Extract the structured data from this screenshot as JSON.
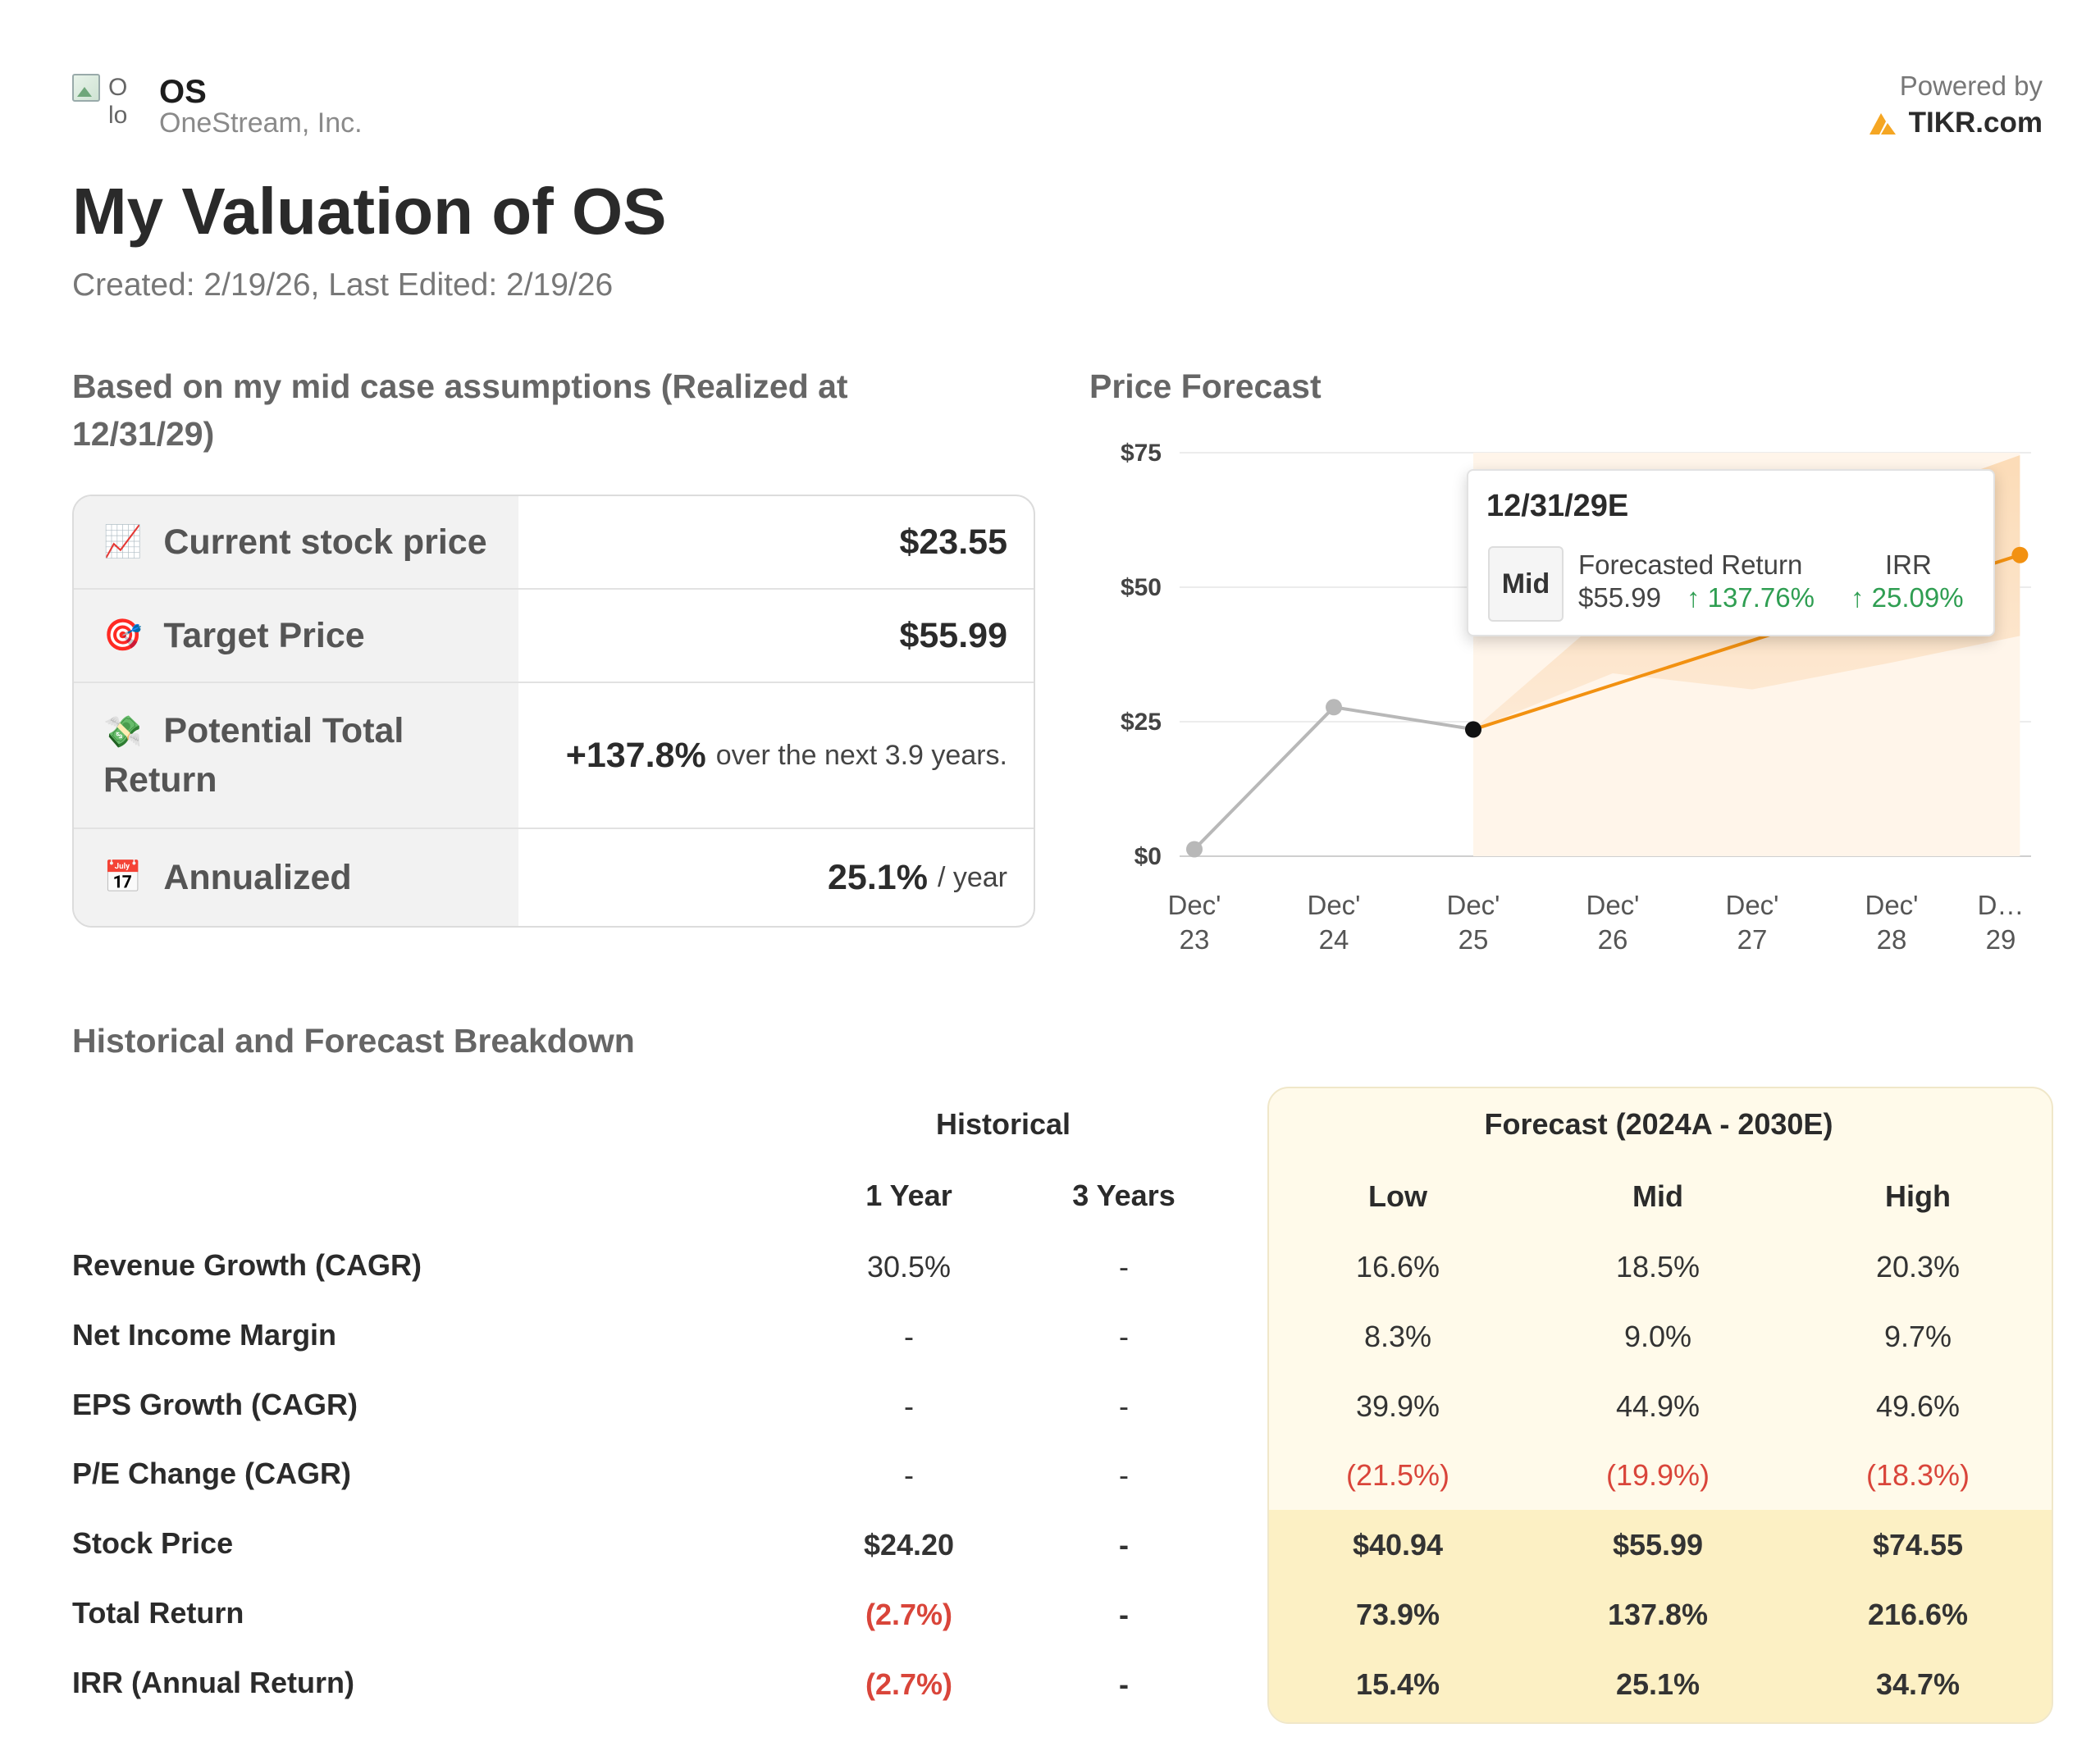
{
  "header": {
    "logo_alt": "OS logo",
    "ticker": "OS",
    "company": "OneStream, Inc.",
    "powered_by": "Powered by",
    "brand": "TIKR.com"
  },
  "page": {
    "title": "My Valuation of OS",
    "subtitle": "Created: 2/19/26, Last Edited: 2/19/26"
  },
  "summary": {
    "heading": "Based on my mid case assumptions (Realized at 12/31/29)",
    "rows": [
      {
        "icon": "chart-increasing-icon",
        "emoji": "📈",
        "label": "Current stock price",
        "value": "$23.55"
      },
      {
        "icon": "target-icon",
        "emoji": "🎯",
        "label": "Target Price",
        "value": "$55.99"
      },
      {
        "icon": "money-with-wings-icon",
        "emoji": "💸",
        "label": "Potential Total Return",
        "value": "+137.8%",
        "suffix": "over the next 3.9 years."
      },
      {
        "icon": "calendar-icon",
        "emoji": "📅",
        "label": "Annualized",
        "value": "25.1%",
        "suffix": "/ year"
      }
    ]
  },
  "chart_data": {
    "type": "line",
    "title": "Price Forecast",
    "categories": [
      "Dec' 23",
      "Dec' 24",
      "Dec' 25",
      "Dec' 26",
      "Dec' 27",
      "Dec' 28",
      "D… 29"
    ],
    "ylim": [
      0,
      75
    ],
    "yticks": [
      "$0",
      "$25",
      "$50",
      "$75"
    ],
    "historical": {
      "name": "Historical",
      "x": [
        0,
        1,
        2
      ],
      "values": [
        1.3,
        27.7,
        23.6
      ],
      "color": "#b8b8b8"
    },
    "forecast_mid": {
      "name": "Mid",
      "x": [
        2,
        5.92
      ],
      "values": [
        23.55,
        55.99
      ],
      "color": "#f29111"
    },
    "forecast_range": {
      "x": [
        2,
        3,
        4,
        5,
        5.92
      ],
      "low": [
        23.55,
        34,
        31,
        36,
        40.94
      ],
      "high": [
        23.55,
        46,
        56,
        66,
        74.55
      ]
    },
    "tooltip": {
      "date": "12/31/29E",
      "case": "Mid",
      "return_label": "Forecasted Return",
      "irr_label": "IRR",
      "price": "$55.99",
      "return_pct": "↑ 137.76%",
      "irr_pct": "↑ 25.09%"
    }
  },
  "breakdown": {
    "heading": "Historical and Forecast Breakdown",
    "historical_title": "Historical",
    "forecast_title": "Forecast (2024A - 2030E)",
    "columns": [
      "1 Year",
      "3 Years",
      "Low",
      "Mid",
      "High"
    ],
    "rows": [
      {
        "label": "Revenue Growth (CAGR)",
        "values": [
          "30.5%",
          "-",
          "16.6%",
          "18.5%",
          "20.3%"
        ]
      },
      {
        "label": "Net Income Margin",
        "values": [
          "-",
          "-",
          "8.3%",
          "9.0%",
          "9.7%"
        ]
      },
      {
        "label": "EPS Growth (CAGR)",
        "values": [
          "-",
          "-",
          "39.9%",
          "44.9%",
          "49.6%"
        ]
      },
      {
        "label": "P/E Change (CAGR)",
        "values": [
          "-",
          "-",
          "(21.5%)",
          "(19.9%)",
          "(18.3%)"
        ]
      },
      {
        "label": "Stock Price",
        "values": [
          "$24.20",
          "-",
          "$40.94",
          "$55.99",
          "$74.55"
        ]
      },
      {
        "label": "Total Return",
        "values": [
          "(2.7%)",
          "-",
          "73.9%",
          "137.8%",
          "216.6%"
        ]
      },
      {
        "label": "IRR (Annual Return)",
        "values": [
          "(2.7%)",
          "-",
          "15.4%",
          "25.1%",
          "34.7%"
        ]
      }
    ]
  }
}
